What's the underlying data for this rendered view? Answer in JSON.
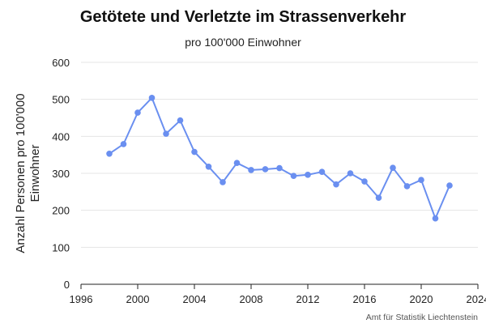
{
  "chart_data": {
    "type": "line",
    "title": "Getötete und Verletzte im Strassenverkehr",
    "subtitle": "pro 100'000 Einwohner",
    "ylabel": [
      "Anzahl Personen pro 100'000",
      "Einwohner"
    ],
    "xlabel": "",
    "xlim": [
      1996,
      2024
    ],
    "ylim": [
      0,
      600
    ],
    "x_ticks": [
      1996,
      2000,
      2004,
      2008,
      2012,
      2016,
      2020,
      2024
    ],
    "y_ticks": [
      0,
      100,
      200,
      300,
      400,
      500,
      600
    ],
    "grid": "horizontal",
    "series": [
      {
        "color": "#6a8ff0",
        "x": [
          1998,
          1999,
          2000,
          2001,
          2002,
          2003,
          2004,
          2005,
          2006,
          2007,
          2008,
          2009,
          2010,
          2011,
          2012,
          2013,
          2014,
          2015,
          2016,
          2017,
          2018,
          2019,
          2020,
          2021,
          2022
        ],
        "y": [
          353,
          379,
          464,
          504,
          407,
          443,
          358,
          318,
          276,
          328,
          309,
          311,
          314,
          293,
          296,
          304,
          270,
          300,
          278,
          234,
          315,
          265,
          282,
          178,
          267
        ]
      }
    ],
    "credit": "Amt für Statistik Liechtenstein"
  }
}
